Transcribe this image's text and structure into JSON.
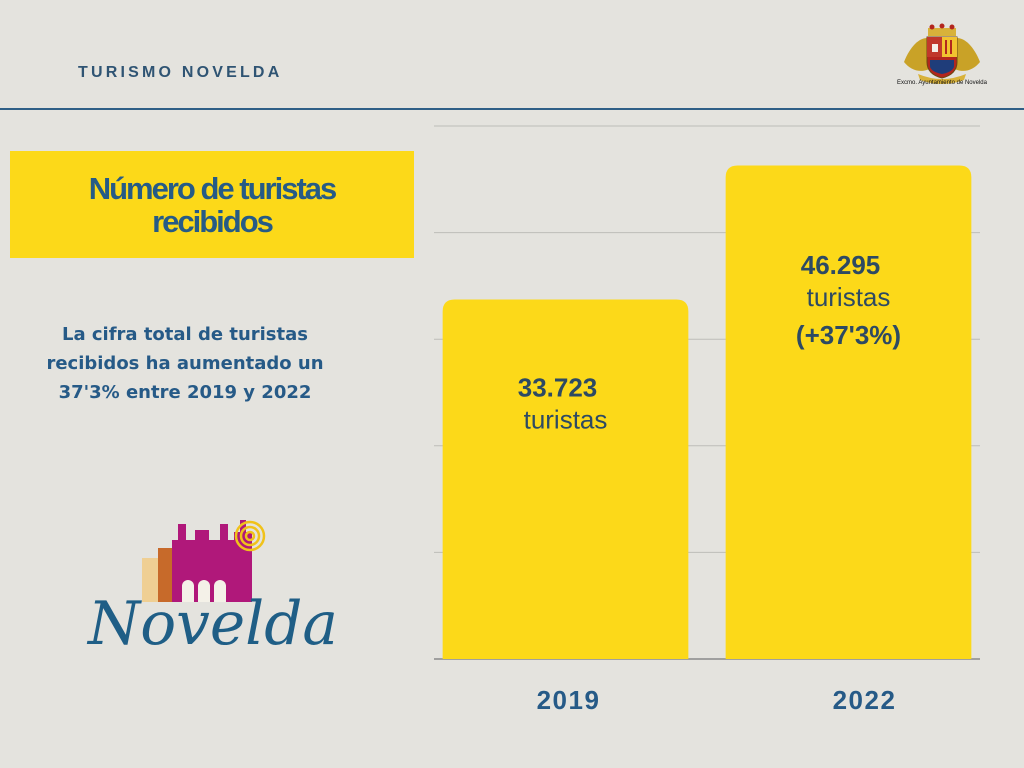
{
  "header": {
    "brand": "TURISMO NOVELDA",
    "crest_caption": "Excmo. Ayuntamiento de Novelda"
  },
  "title_box": {
    "line1": "Número de turistas",
    "line2": "recibidos"
  },
  "description": {
    "text": "La cifra total de turistas recibidos ha aumentado un 37'3% entre 2019 y 2022"
  },
  "logo": {
    "word": "Novelda"
  },
  "colors": {
    "background": "#e4e3de",
    "accent_yellow": "#fcd919",
    "brand_blue": "#265a87",
    "bar_label": "#2d4a63"
  },
  "chart_data": {
    "type": "bar",
    "categories": [
      "2019",
      "2022"
    ],
    "values": [
      33723,
      46295
    ],
    "data_labels": [
      [
        "33.723",
        "turistas"
      ],
      [
        "46.295",
        "turistas",
        "(+37'3%)"
      ]
    ],
    "title": "",
    "xlabel": "",
    "ylabel": "",
    "ylim": [
      0,
      50000
    ],
    "grid": true,
    "legend": "none"
  }
}
